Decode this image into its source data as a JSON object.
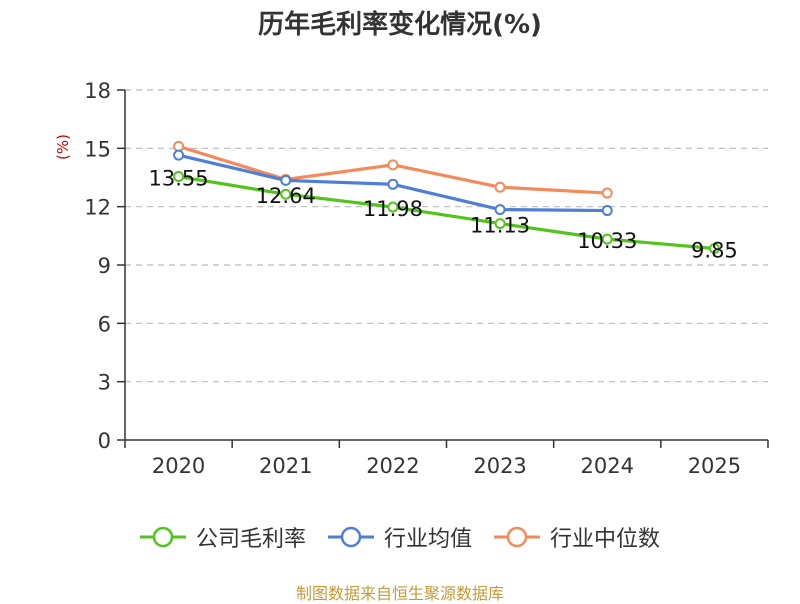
{
  "chart_data": {
    "type": "line",
    "title": "历年毛利率变化情况(%)",
    "ylabel": "(%)",
    "xlabel": "",
    "categories": [
      "2020",
      "2021",
      "2022",
      "2023",
      "2024",
      "2025"
    ],
    "ylim": [
      0,
      18
    ],
    "yticks": [
      0,
      3,
      6,
      9,
      12,
      15,
      18
    ],
    "grid": true,
    "legend_position": "bottom",
    "series": [
      {
        "name": "公司毛利率",
        "color": "#52c41a",
        "values": [
          13.55,
          12.64,
          11.98,
          11.13,
          10.33,
          9.85
        ],
        "labels": [
          "13.55",
          "12.64",
          "11.98",
          "11.13",
          "10.33",
          "9.85"
        ]
      },
      {
        "name": "行业均值",
        "color": "#4e7fd6",
        "values": [
          14.65,
          13.35,
          13.15,
          11.85,
          11.8,
          null
        ]
      },
      {
        "name": "行业中位数",
        "color": "#f4895a",
        "values": [
          15.1,
          13.4,
          14.15,
          13.0,
          12.7,
          null
        ]
      }
    ]
  },
  "footer": {
    "source": "制图数据来自恒生聚源数据库"
  }
}
